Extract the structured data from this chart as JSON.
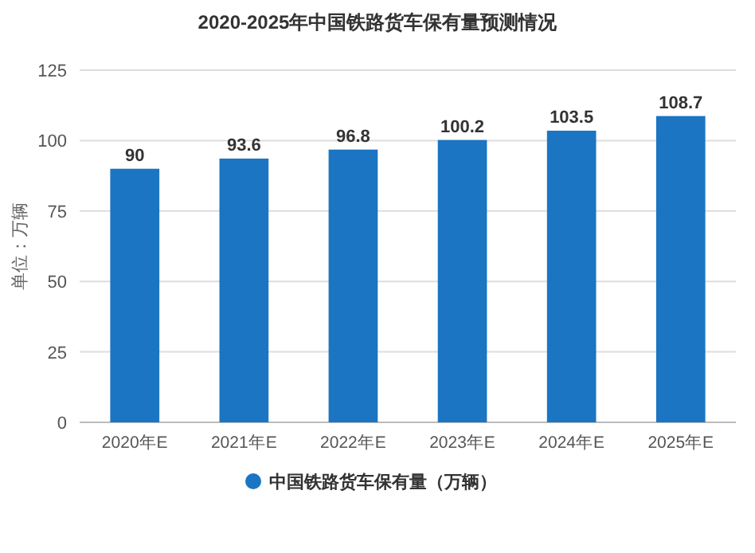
{
  "chart_data": {
    "type": "bar",
    "title": "2020-2025年中国铁路货车保有量预测情况",
    "ylabel": "单位：万辆",
    "categories": [
      "2020年E",
      "2021年E",
      "2022年E",
      "2023年E",
      "2024年E",
      "2025年E"
    ],
    "series": [
      {
        "name": "中国铁路货车保有量（万辆）",
        "color": "#1b75c2",
        "values": [
          90,
          93.6,
          96.8,
          100.2,
          103.5,
          108.7
        ]
      }
    ],
    "ylim": [
      0,
      125
    ],
    "yticks": [
      0,
      25,
      50,
      75,
      100,
      125
    ],
    "grid": "y",
    "legend": "bottom",
    "data_labels": true
  }
}
